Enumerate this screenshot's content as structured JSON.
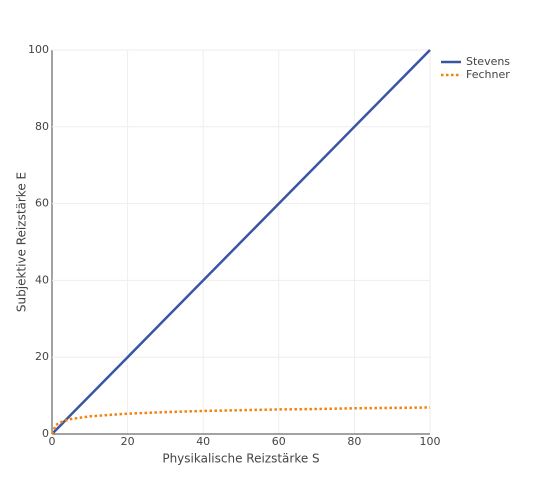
{
  "chart_data": {
    "type": "line",
    "x_label": "Physikalische Reizstärke S",
    "y_label": "Subjektive Reizstärke E",
    "x": [
      0,
      1,
      2,
      5,
      10,
      20,
      30,
      40,
      50,
      60,
      70,
      80,
      90,
      100
    ],
    "series": [
      {
        "name": "Stevens",
        "color": "#3b55a5",
        "dash": "solid",
        "values": [
          0,
          1,
          2,
          5,
          10,
          20,
          30,
          40,
          50,
          60,
          70,
          80,
          90,
          100
        ]
      },
      {
        "name": "Fechner",
        "color": "#f5820d",
        "dash": "dot",
        "values": [
          0,
          2.3,
          3.0,
          3.9,
          4.6,
          5.3,
          5.7,
          6.0,
          6.2,
          6.4,
          6.5,
          6.7,
          6.8,
          6.9
        ]
      }
    ],
    "xlim": [
      0,
      100
    ],
    "xticks": [
      0,
      20,
      40,
      60,
      80,
      100
    ],
    "ylim": [
      0,
      100
    ],
    "yticks": [
      0,
      20,
      40,
      60,
      80,
      100
    ],
    "grid": true,
    "legend": "top-right-outside"
  }
}
